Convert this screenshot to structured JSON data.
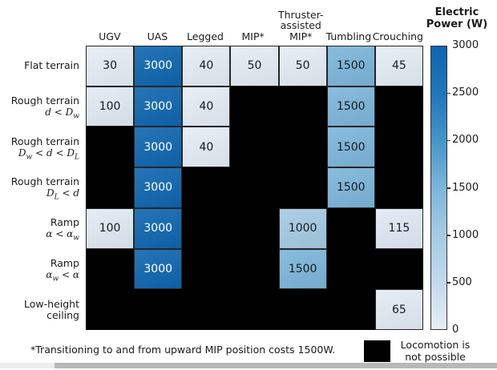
{
  "chart_data": {
    "type": "heatmap",
    "title": "Electric Power (W)",
    "columns": [
      "UGV",
      "UAS",
      "Legged",
      "MIP*",
      "Thruster-\nassisted\nMIP*",
      "Tumbling",
      "Crouching"
    ],
    "rows": [
      {
        "label": "Flat terrain",
        "condition": ""
      },
      {
        "label": "Rough terrain",
        "condition": "d < D_w"
      },
      {
        "label": "Rough terrain",
        "condition": "D_w < d < D_L"
      },
      {
        "label": "Rough terrain",
        "condition": "D_L < d"
      },
      {
        "label": "Ramp",
        "condition": "α < α_w"
      },
      {
        "label": "Ramp",
        "condition": "α_w < α"
      },
      {
        "label": "Low-height\nceiling",
        "condition": ""
      }
    ],
    "values": [
      [
        30,
        3000,
        40,
        50,
        50,
        1500,
        45
      ],
      [
        100,
        3000,
        40,
        null,
        null,
        1500,
        null
      ],
      [
        null,
        3000,
        40,
        null,
        null,
        1500,
        null
      ],
      [
        null,
        3000,
        null,
        null,
        null,
        1500,
        null
      ],
      [
        100,
        3000,
        null,
        null,
        1000,
        null,
        115
      ],
      [
        null,
        3000,
        null,
        null,
        1500,
        null,
        null
      ],
      [
        null,
        null,
        null,
        null,
        null,
        null,
        65
      ]
    ],
    "null_meaning": "Locomotion is not possible",
    "colorbar": {
      "title_lines": [
        "Electric",
        "Power (W)"
      ],
      "ticks": [
        3000,
        2500,
        2000,
        1500,
        1000,
        500,
        0
      ],
      "min": 0,
      "max": 3000,
      "stops": [
        [
          0,
          "#e7eef6"
        ],
        [
          500,
          "#c3d9ec"
        ],
        [
          1000,
          "#a5cae3"
        ],
        [
          1500,
          "#7cb5da"
        ],
        [
          2000,
          "#4695c8"
        ],
        [
          2500,
          "#2176b9"
        ],
        [
          3000,
          "#0f65af"
        ]
      ],
      "blocked_color": "#000000"
    }
  },
  "footnote": "*Transitioning to and from upward MIP position costs 1500W.",
  "legend": {
    "line1": "Locomotion is",
    "line2": "not possible",
    "swatch_color": "#000000"
  }
}
